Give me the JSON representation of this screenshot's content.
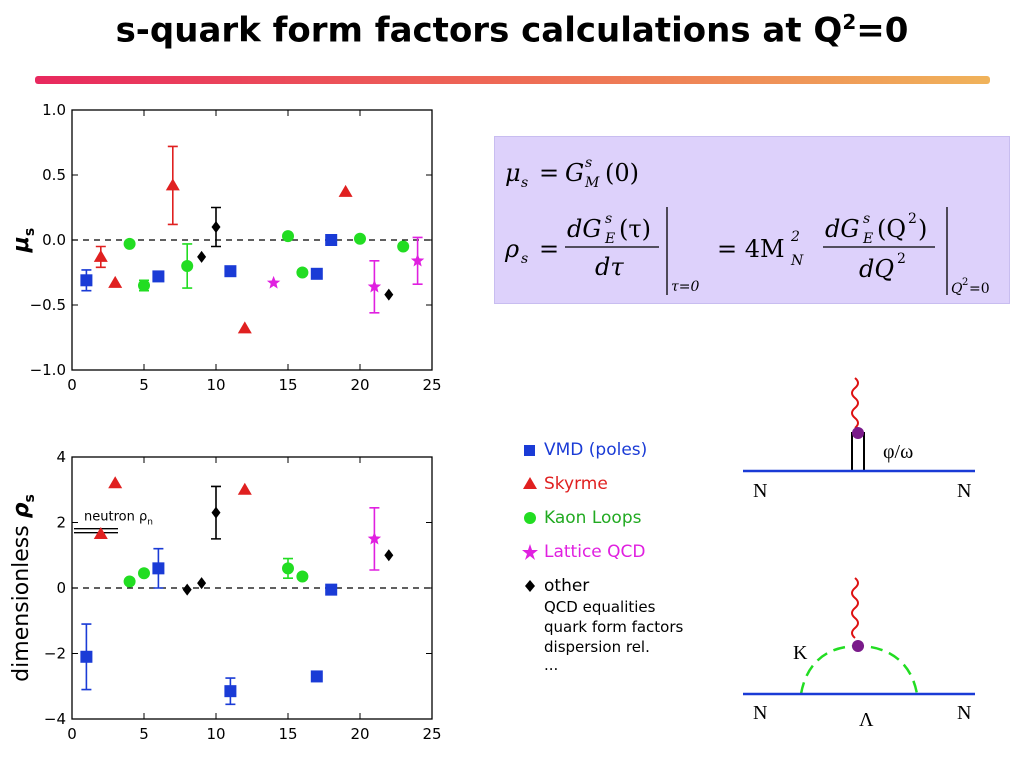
{
  "title": {
    "text": "s-quark form factors calculations at Q",
    "sup": "2",
    "tail": "=0"
  },
  "formula": {
    "line1": {
      "lhs": "μ",
      "lhs_sub": "s",
      "eq": "=",
      "G": "G",
      "G_sup": "s",
      "G_sub": "M",
      "arg": "(0)"
    },
    "line2": {
      "lhs": "ρ",
      "lhs_sub": "s",
      "num1": "dG",
      "num1_sup": "s",
      "num1_sub": "E",
      "num1_arg": "(τ)",
      "den1": "dτ",
      "eval1": "τ=0",
      "eq2": "= 4M",
      "M_sub": "N",
      "M_sup": "2",
      "num2": "dG",
      "num2_sup": "s",
      "num2_sub": "E",
      "num2_arg": "(Q",
      "num2_arg_sup": "2",
      "num2_arg_close": ")",
      "den2": "dQ",
      "den2_sup": "2",
      "eval2": "Q",
      "eval2_sup": "2",
      "eval2_tail": "=0"
    }
  },
  "legend": {
    "items": [
      {
        "label": "VMD (poles)",
        "color": "#1a3bd6",
        "marker": "square"
      },
      {
        "label": "Skyrme",
        "color": "#e02020",
        "marker": "triangle"
      },
      {
        "label": "Kaon Loops",
        "color": "#22dd22",
        "marker": "circle"
      },
      {
        "label": "Lattice QCD",
        "color": "#e020e0",
        "marker": "star"
      },
      {
        "label": "other",
        "color": "#000000",
        "marker": "diamond"
      }
    ],
    "other_details": [
      "QCD equalities",
      "quark form factors",
      "dispersion rel.",
      "..."
    ]
  },
  "diagrams": {
    "top": {
      "meson_label": "φ/ω",
      "left": "N",
      "right": "N"
    },
    "bottom": {
      "loop_label": "K",
      "left": "N",
      "right": "N",
      "baryon": "Λ"
    }
  },
  "chart_data": [
    {
      "type": "scatter",
      "title": "",
      "xlabel": "",
      "ylabel": "μs",
      "ylabel_main": "μ",
      "ylabel_sub": "s",
      "xlim": [
        0,
        25
      ],
      "ylim": [
        -1.0,
        1.0
      ],
      "xticks": [
        0,
        5,
        10,
        15,
        20,
        25
      ],
      "yticks": [
        -1.0,
        -0.5,
        0.0,
        0.5,
        1.0
      ],
      "ytick_labels": [
        "−1.0",
        "−0.5",
        "0.0",
        "0.5",
        "1.0"
      ],
      "zero_line": true,
      "series": [
        {
          "name": "VMD (poles)",
          "marker": "square",
          "color": "#1a3bd6",
          "points": [
            {
              "x": 1,
              "y": -0.31,
              "err": 0.08
            },
            {
              "x": 6,
              "y": -0.28
            },
            {
              "x": 11,
              "y": -0.24
            },
            {
              "x": 17,
              "y": -0.26
            },
            {
              "x": 18,
              "y": 0.0
            }
          ]
        },
        {
          "name": "Skyrme",
          "marker": "triangle",
          "color": "#e02020",
          "points": [
            {
              "x": 2,
              "y": -0.13,
              "err": 0.08
            },
            {
              "x": 3,
              "y": -0.33
            },
            {
              "x": 7,
              "y": 0.42,
              "err": 0.3
            },
            {
              "x": 12,
              "y": -0.68
            },
            {
              "x": 19,
              "y": 0.37
            }
          ]
        },
        {
          "name": "Kaon Loops",
          "marker": "circle",
          "color": "#22dd22",
          "points": [
            {
              "x": 4,
              "y": -0.03
            },
            {
              "x": 5,
              "y": -0.35,
              "err": 0.04
            },
            {
              "x": 8,
              "y": -0.2,
              "err": 0.17
            },
            {
              "x": 15,
              "y": 0.03
            },
            {
              "x": 16,
              "y": -0.25
            },
            {
              "x": 20,
              "y": 0.01
            },
            {
              "x": 23,
              "y": -0.05
            }
          ]
        },
        {
          "name": "Lattice QCD",
          "marker": "star",
          "color": "#e020e0",
          "points": [
            {
              "x": 14,
              "y": -0.33
            },
            {
              "x": 21,
              "y": -0.36,
              "err": 0.2
            },
            {
              "x": 24,
              "y": -0.16,
              "err": 0.18
            }
          ]
        },
        {
          "name": "other",
          "marker": "diamond",
          "color": "#000000",
          "points": [
            {
              "x": 9,
              "y": -0.13
            },
            {
              "x": 10,
              "y": 0.1,
              "err": 0.15
            },
            {
              "x": 22,
              "y": -0.42
            }
          ]
        }
      ]
    },
    {
      "type": "scatter",
      "title": "",
      "xlabel": "",
      "ylabel": "dimensionless ρs",
      "ylabel_text": "dimensionless",
      "ylabel_main": "ρ",
      "ylabel_sub": "s",
      "xlim": [
        0,
        25
      ],
      "ylim": [
        -4,
        4
      ],
      "xticks": [
        0,
        5,
        10,
        15,
        20,
        25
      ],
      "yticks": [
        -4,
        -2,
        0,
        2,
        4
      ],
      "ytick_labels": [
        "−4",
        "−2",
        "0",
        "2",
        "4"
      ],
      "zero_line": true,
      "annotation": {
        "text": "neutron ρ",
        "sub": "n",
        "y": 1.75
      },
      "series": [
        {
          "name": "VMD (poles)",
          "marker": "square",
          "color": "#1a3bd6",
          "points": [
            {
              "x": 1,
              "y": -2.1,
              "err": 1.0
            },
            {
              "x": 6,
              "y": 0.6,
              "err": 0.6
            },
            {
              "x": 11,
              "y": -3.15,
              "err": 0.4
            },
            {
              "x": 17,
              "y": -2.7
            },
            {
              "x": 18,
              "y": -0.05
            }
          ]
        },
        {
          "name": "Skyrme",
          "marker": "triangle",
          "color": "#e02020",
          "points": [
            {
              "x": 2,
              "y": 1.65
            },
            {
              "x": 3,
              "y": 3.2
            },
            {
              "x": 12,
              "y": 3.0
            }
          ]
        },
        {
          "name": "Kaon Loops",
          "marker": "circle",
          "color": "#22dd22",
          "points": [
            {
              "x": 4,
              "y": 0.2
            },
            {
              "x": 5,
              "y": 0.45
            },
            {
              "x": 15,
              "y": 0.6,
              "err": 0.3
            },
            {
              "x": 16,
              "y": 0.35
            }
          ]
        },
        {
          "name": "Lattice QCD",
          "marker": "star",
          "color": "#e020e0",
          "points": [
            {
              "x": 21,
              "y": 1.5,
              "err": 0.95
            }
          ]
        },
        {
          "name": "other",
          "marker": "diamond",
          "color": "#000000",
          "points": [
            {
              "x": 8,
              "y": -0.05
            },
            {
              "x": 9,
              "y": 0.15
            },
            {
              "x": 10,
              "y": 2.3,
              "err": 0.8
            },
            {
              "x": 22,
              "y": 1.0
            }
          ]
        }
      ]
    }
  ]
}
